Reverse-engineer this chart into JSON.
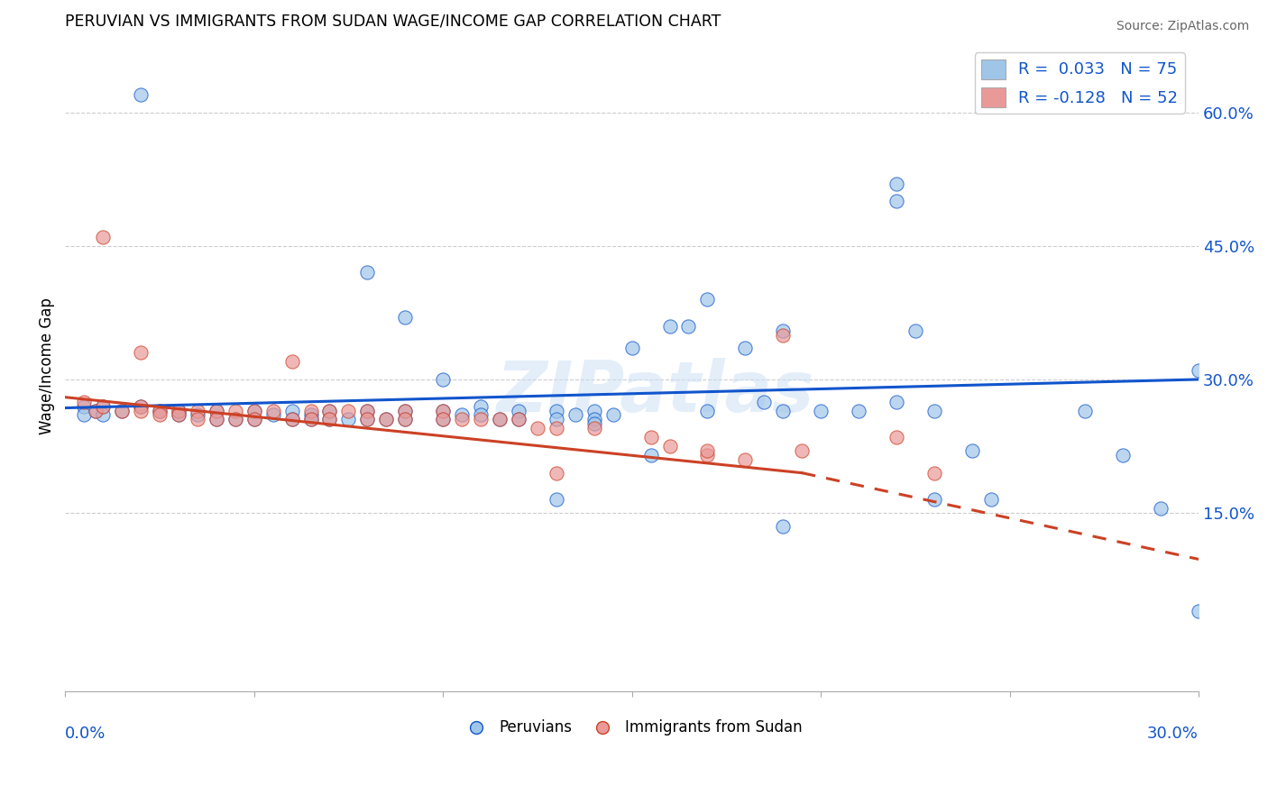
{
  "title": "PERUVIAN VS IMMIGRANTS FROM SUDAN WAGE/INCOME GAP CORRELATION CHART",
  "source": "Source: ZipAtlas.com",
  "ylabel": "Wage/Income Gap",
  "y_ticks": [
    0.15,
    0.3,
    0.45,
    0.6
  ],
  "y_tick_labels": [
    "15.0%",
    "30.0%",
    "45.0%",
    "60.0%"
  ],
  "xlim": [
    0.0,
    0.3
  ],
  "ylim": [
    -0.05,
    0.68
  ],
  "blue_color": "#9fc5e8",
  "pink_color": "#ea9999",
  "blue_line_color": "#1155cc",
  "pink_line_color": "#cc4125",
  "scatter_label_blue": "Peruvians",
  "scatter_label_pink": "Immigrants from Sudan",
  "watermark": "ZIPatlas",
  "blue_trend_x0": 0.0,
  "blue_trend_y0": 0.268,
  "blue_trend_x1": 0.3,
  "blue_trend_y1": 0.3,
  "pink_trend_x0": 0.0,
  "pink_trend_y0": 0.28,
  "pink_trend_solid_end_x": 0.195,
  "pink_trend_solid_end_y": 0.195,
  "pink_trend_x1": 0.3,
  "pink_trend_y1": 0.098,
  "blue_x": [
    0.005,
    0.005,
    0.008,
    0.01,
    0.01,
    0.015,
    0.02,
    0.02,
    0.025,
    0.03,
    0.03,
    0.035,
    0.04,
    0.04,
    0.045,
    0.05,
    0.05,
    0.055,
    0.06,
    0.06,
    0.065,
    0.065,
    0.07,
    0.07,
    0.075,
    0.08,
    0.08,
    0.085,
    0.09,
    0.09,
    0.1,
    0.1,
    0.105,
    0.11,
    0.11,
    0.115,
    0.12,
    0.12,
    0.13,
    0.13,
    0.135,
    0.14,
    0.14,
    0.145,
    0.15,
    0.16,
    0.165,
    0.17,
    0.18,
    0.185,
    0.19,
    0.2,
    0.21,
    0.22,
    0.22,
    0.225,
    0.23,
    0.24,
    0.245,
    0.27,
    0.28,
    0.29,
    0.3,
    0.17,
    0.19,
    0.155,
    0.08,
    0.09,
    0.1,
    0.3,
    0.22,
    0.14,
    0.23,
    0.19,
    0.13
  ],
  "blue_y": [
    0.27,
    0.26,
    0.265,
    0.27,
    0.26,
    0.265,
    0.62,
    0.27,
    0.265,
    0.265,
    0.26,
    0.26,
    0.265,
    0.255,
    0.255,
    0.265,
    0.255,
    0.26,
    0.265,
    0.255,
    0.26,
    0.255,
    0.265,
    0.255,
    0.255,
    0.265,
    0.255,
    0.255,
    0.265,
    0.255,
    0.265,
    0.255,
    0.26,
    0.27,
    0.26,
    0.255,
    0.265,
    0.255,
    0.265,
    0.255,
    0.26,
    0.265,
    0.255,
    0.26,
    0.335,
    0.36,
    0.36,
    0.265,
    0.335,
    0.275,
    0.355,
    0.265,
    0.265,
    0.275,
    0.5,
    0.355,
    0.265,
    0.22,
    0.165,
    0.265,
    0.215,
    0.155,
    0.04,
    0.39,
    0.265,
    0.215,
    0.42,
    0.37,
    0.3,
    0.31,
    0.52,
    0.25,
    0.165,
    0.135,
    0.165
  ],
  "pink_x": [
    0.005,
    0.008,
    0.01,
    0.015,
    0.02,
    0.02,
    0.025,
    0.025,
    0.03,
    0.03,
    0.035,
    0.035,
    0.04,
    0.04,
    0.045,
    0.045,
    0.05,
    0.05,
    0.055,
    0.06,
    0.065,
    0.065,
    0.07,
    0.07,
    0.075,
    0.08,
    0.08,
    0.085,
    0.09,
    0.09,
    0.1,
    0.1,
    0.105,
    0.11,
    0.115,
    0.12,
    0.125,
    0.13,
    0.14,
    0.155,
    0.16,
    0.17,
    0.18,
    0.19,
    0.195,
    0.22,
    0.23,
    0.01,
    0.02,
    0.06,
    0.17,
    0.13
  ],
  "pink_y": [
    0.275,
    0.265,
    0.27,
    0.265,
    0.27,
    0.265,
    0.265,
    0.26,
    0.265,
    0.26,
    0.265,
    0.255,
    0.265,
    0.255,
    0.265,
    0.255,
    0.265,
    0.255,
    0.265,
    0.255,
    0.265,
    0.255,
    0.265,
    0.255,
    0.265,
    0.265,
    0.255,
    0.255,
    0.265,
    0.255,
    0.265,
    0.255,
    0.255,
    0.255,
    0.255,
    0.255,
    0.245,
    0.245,
    0.245,
    0.235,
    0.225,
    0.215,
    0.21,
    0.35,
    0.22,
    0.235,
    0.195,
    0.46,
    0.33,
    0.32,
    0.22,
    0.195
  ]
}
